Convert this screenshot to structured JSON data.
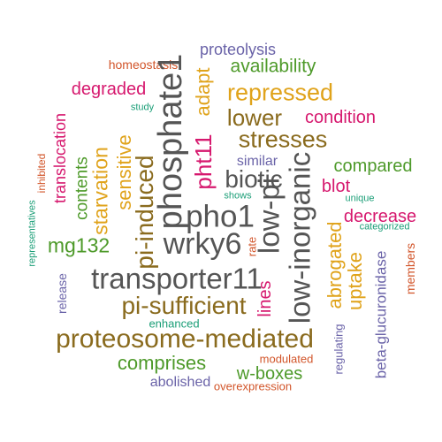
{
  "colors": {
    "gray": "#555555",
    "brown": "#8a6b1e",
    "green": "#4e9a2a",
    "orange": "#e0a31b",
    "magenta": "#d6186e",
    "purple": "#6a63a8",
    "red": "#d2552a",
    "teal": "#1b9e77"
  },
  "words": [
    {
      "text": "proteolysis",
      "color": "purple"
    },
    {
      "text": "homeostasis",
      "color": "red"
    },
    {
      "text": "adapt",
      "color": "orange"
    },
    {
      "text": "availability",
      "color": "green"
    },
    {
      "text": "degraded",
      "color": "magenta"
    },
    {
      "text": "repressed",
      "color": "orange"
    },
    {
      "text": "phosphate1",
      "color": "gray"
    },
    {
      "text": "study",
      "color": "teal"
    },
    {
      "text": "lower",
      "color": "brown"
    },
    {
      "text": "condition",
      "color": "magenta"
    },
    {
      "text": "translocation",
      "color": "magenta"
    },
    {
      "text": "pht11",
      "color": "magenta"
    },
    {
      "text": "stresses",
      "color": "brown"
    },
    {
      "text": "inhibited",
      "color": "red"
    },
    {
      "text": "sensitive",
      "color": "orange"
    },
    {
      "text": "similar",
      "color": "purple"
    },
    {
      "text": "compared",
      "color": "green"
    },
    {
      "text": "contents",
      "color": "green"
    },
    {
      "text": "starvation",
      "color": "orange"
    },
    {
      "text": "biotic",
      "color": "gray"
    },
    {
      "text": "low-pi",
      "color": "gray"
    },
    {
      "text": "low-inorganic",
      "color": "gray"
    },
    {
      "text": "blot",
      "color": "magenta"
    },
    {
      "text": "representatives",
      "color": "teal"
    },
    {
      "text": "shows",
      "color": "teal"
    },
    {
      "text": "unique",
      "color": "teal"
    },
    {
      "text": "pi-induced",
      "color": "brown"
    },
    {
      "text": "pho1",
      "color": "gray"
    },
    {
      "text": "decrease",
      "color": "magenta"
    },
    {
      "text": "mg132",
      "color": "green"
    },
    {
      "text": "wrky6",
      "color": "gray"
    },
    {
      "text": "categorized",
      "color": "teal"
    },
    {
      "text": "rate",
      "color": "red"
    },
    {
      "text": "abrogated",
      "color": "orange"
    },
    {
      "text": "beta-glucuronidase",
      "color": "purple"
    },
    {
      "text": "members",
      "color": "red"
    },
    {
      "text": "uptake",
      "color": "orange"
    },
    {
      "text": "release",
      "color": "purple"
    },
    {
      "text": "transporter11",
      "color": "gray"
    },
    {
      "text": "lines",
      "color": "magenta"
    },
    {
      "text": "pi-sufficient",
      "color": "brown"
    },
    {
      "text": "enhanced",
      "color": "teal"
    },
    {
      "text": "regulating",
      "color": "purple"
    },
    {
      "text": "proteosome-mediated",
      "color": "brown"
    },
    {
      "text": "comprises",
      "color": "green"
    },
    {
      "text": "modulated",
      "color": "red"
    },
    {
      "text": "w-boxes",
      "color": "green"
    },
    {
      "text": "abolished",
      "color": "purple"
    },
    {
      "text": "overexpression",
      "color": "red"
    }
  ]
}
